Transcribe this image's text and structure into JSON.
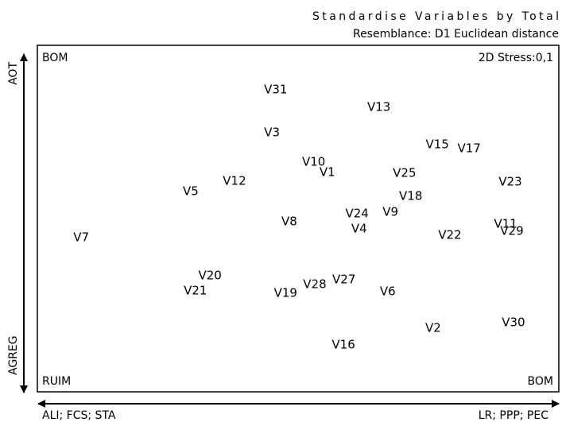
{
  "chart_data": {
    "type": "scatter",
    "title": [
      "Standardise Variables by Total",
      "Resemblance: D1 Euclidean distance"
    ],
    "stress": "2D Stress:0,1",
    "corners": {
      "top_left": "BOM",
      "bottom_left": "RUIM",
      "bottom_right": "BOM"
    },
    "y_axis_labels": {
      "top": "AOT",
      "bottom": "AGREG"
    },
    "x_axis_labels": {
      "left": "ALI; FCS; STA",
      "right": "LR; PPP; PEC"
    },
    "labels": [
      "V31",
      "V13",
      "V3",
      "V15",
      "V17",
      "V10",
      "V1",
      "V25",
      "V23",
      "V12",
      "V5",
      "V18",
      "V24",
      "V9",
      "V8",
      "V4",
      "V11",
      "V29",
      "V22",
      "V7",
      "V20",
      "V21",
      "V27",
      "V28",
      "V19",
      "V6",
      "V2",
      "V30",
      "V16"
    ],
    "x": [
      45.7,
      65.5,
      45.0,
      76.7,
      82.8,
      53.0,
      55.6,
      70.4,
      90.7,
      37.8,
      29.4,
      71.6,
      61.3,
      67.7,
      48.3,
      61.7,
      89.8,
      91.0,
      79.1,
      8.4,
      33.1,
      30.3,
      58.8,
      53.2,
      47.6,
      67.2,
      75.9,
      91.3,
      58.7
    ],
    "values": [
      87.2,
      82.1,
      74.8,
      71.3,
      70.2,
      66.3,
      63.3,
      63.1,
      60.6,
      60.8,
      57.8,
      56.4,
      51.4,
      51.8,
      49.1,
      47.0,
      48.4,
      46.3,
      45.2,
      44.5,
      33.5,
      29.1,
      32.3,
      31.0,
      28.4,
      28.9,
      18.3,
      20.0,
      13.5
    ],
    "xlim": [
      0,
      100
    ],
    "ylim": [
      0,
      100
    ],
    "color": "#000000"
  }
}
